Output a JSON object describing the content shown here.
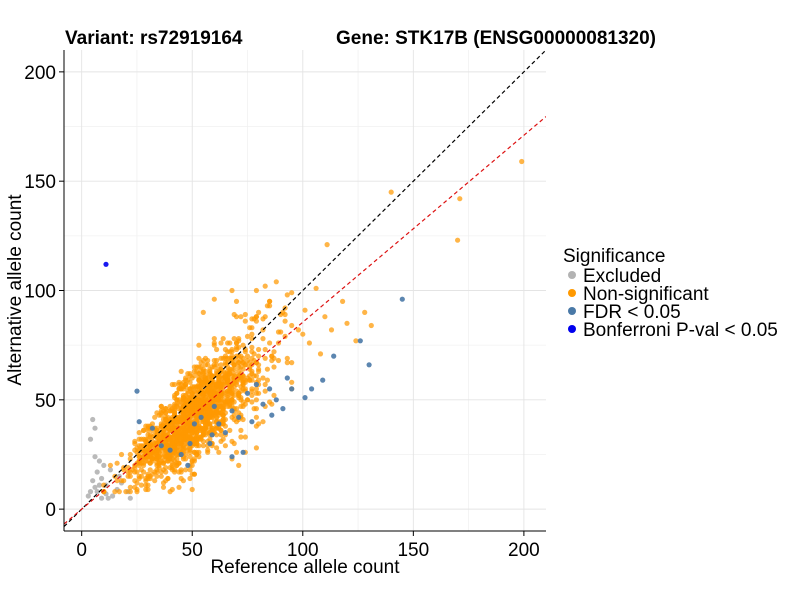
{
  "chart_data": {
    "type": "scatter",
    "title_left": "Variant: rs72919164",
    "title_right": "Gene: STK17B (ENSG00000081320)",
    "xlabel": "Reference allele count",
    "ylabel": "Alternative allele count",
    "xlim": [
      -8,
      210
    ],
    "ylim": [
      -10,
      210
    ],
    "xticks": [
      0,
      50,
      100,
      150,
      200
    ],
    "yticks": [
      0,
      50,
      100,
      150,
      200
    ],
    "grid": true,
    "legend_title": "Significance",
    "legend_position": "right",
    "series": [
      {
        "name": "Excluded",
        "color": "#b3b3b3",
        "points": [
          [
            4,
            32
          ],
          [
            5,
            41
          ],
          [
            6,
            37
          ],
          [
            6,
            24
          ],
          [
            7,
            17
          ],
          [
            5,
            13
          ],
          [
            8,
            11
          ],
          [
            7,
            8
          ],
          [
            3,
            6
          ],
          [
            9,
            5
          ],
          [
            11,
            7
          ],
          [
            14,
            6
          ],
          [
            16,
            9
          ],
          [
            18,
            12
          ],
          [
            21,
            8
          ],
          [
            22,
            5
          ],
          [
            12,
            5
          ],
          [
            10,
            20
          ],
          [
            9,
            14
          ],
          [
            6,
            10
          ],
          [
            4,
            8
          ],
          [
            13,
            18
          ],
          [
            17,
            15
          ],
          [
            8,
            22
          ],
          [
            11,
            11
          ]
        ]
      },
      {
        "name": "Non-significant",
        "color": "#ff9900",
        "generated": {
          "count": 1500,
          "seed": 7,
          "x_range": [
            10,
            95
          ],
          "slope": 0.83
        }
      },
      {
        "name": "Non-significant (outliers)",
        "legend": false,
        "color": "#ff9900",
        "points": [
          [
            140,
            145
          ],
          [
            199,
            159
          ],
          [
            171,
            142
          ],
          [
            170,
            123
          ],
          [
            111,
            121
          ],
          [
            128,
            90
          ],
          [
            118,
            95
          ],
          [
            120,
            85
          ],
          [
            124,
            77
          ],
          [
            131,
            84
          ],
          [
            110,
            88
          ],
          [
            106,
            101
          ],
          [
            101,
            91
          ],
          [
            113,
            82
          ],
          [
            95,
            99
          ],
          [
            92,
            92
          ],
          [
            98,
            82
          ],
          [
            100,
            80
          ],
          [
            88,
            104
          ],
          [
            79,
            100
          ],
          [
            85,
            95
          ],
          [
            92,
            86
          ],
          [
            103,
            76
          ],
          [
            108,
            71
          ],
          [
            93,
            67
          ],
          [
            70,
            95
          ],
          [
            72,
            88
          ],
          [
            68,
            100
          ],
          [
            60,
            96
          ],
          [
            55,
            90
          ]
        ]
      },
      {
        "name": "FDR < 0.05",
        "color": "#4a79a7",
        "points": [
          [
            145,
            96
          ],
          [
            126,
            77
          ],
          [
            130,
            66
          ],
          [
            114,
            70
          ],
          [
            109,
            59
          ],
          [
            104,
            55
          ],
          [
            101,
            51
          ],
          [
            95,
            55
          ],
          [
            93,
            60
          ],
          [
            88,
            50
          ],
          [
            85,
            55
          ],
          [
            82,
            48
          ],
          [
            79,
            57
          ],
          [
            77,
            40
          ],
          [
            75,
            53
          ],
          [
            71,
            42
          ],
          [
            68,
            45
          ],
          [
            65,
            35
          ],
          [
            62,
            39
          ],
          [
            60,
            47
          ],
          [
            59,
            34
          ],
          [
            58,
            30
          ],
          [
            54,
            42
          ],
          [
            51,
            39
          ],
          [
            49,
            30
          ],
          [
            45,
            25
          ],
          [
            40,
            27
          ],
          [
            36,
            29
          ],
          [
            32,
            37
          ],
          [
            26,
            40
          ],
          [
            25,
            54
          ],
          [
            48,
            20
          ],
          [
            68,
            24
          ],
          [
            73,
            26
          ],
          [
            86,
            43
          ],
          [
            91,
            46
          ]
        ]
      },
      {
        "name": "Bonferroni P-val < 0.05",
        "color": "#0000ee",
        "points": [
          [
            11,
            112
          ]
        ]
      }
    ],
    "reference_lines": [
      {
        "name": "identity-line",
        "slope": 1.0,
        "intercept": 0,
        "color": "#000000",
        "dashed": true
      },
      {
        "name": "ratio-line",
        "slope": 0.855,
        "intercept": 0,
        "color": "#dd1111",
        "dashed": true
      }
    ]
  }
}
